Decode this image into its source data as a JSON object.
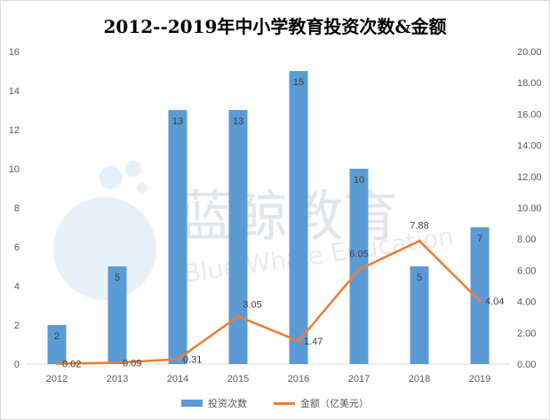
{
  "chart_data": {
    "type": "bar",
    "title": "2012--2019年中小学教育投资次数&金额",
    "categories": [
      "2012",
      "2013",
      "2014",
      "2015",
      "2016",
      "2017",
      "2018",
      "2019"
    ],
    "series": [
      {
        "name": "投资次数",
        "type": "bar",
        "axis": "left",
        "color": "#5b9bd5",
        "values": [
          2,
          5,
          13,
          13,
          15,
          10,
          5,
          7
        ]
      },
      {
        "name": "金额（亿美元）",
        "type": "line",
        "axis": "right",
        "color": "#ed7d31",
        "values": [
          0.02,
          0.09,
          0.31,
          3.05,
          1.47,
          6.05,
          7.88,
          4.04
        ]
      }
    ],
    "y_left": {
      "min": 0,
      "max": 16,
      "step": 2,
      "tick_labels": [
        "0",
        "2",
        "4",
        "6",
        "8",
        "10",
        "12",
        "14",
        "16"
      ]
    },
    "y_right": {
      "min": 0,
      "max": 20,
      "step": 2,
      "tick_labels": [
        "0.00",
        "2.00",
        "4.00",
        "6.00",
        "8.00",
        "10.00",
        "12.00",
        "14.00",
        "16.00",
        "18.00",
        "20.00"
      ]
    },
    "line_data_labels": [
      "0.02",
      "0.09",
      "0.31",
      "3.05",
      "1.47",
      "6.05",
      "7.88",
      "4.04"
    ],
    "gridlines": false,
    "legend_position": "bottom"
  },
  "watermark": {
    "cn": "蓝鲸教育",
    "en": "Blue Whale Education"
  }
}
